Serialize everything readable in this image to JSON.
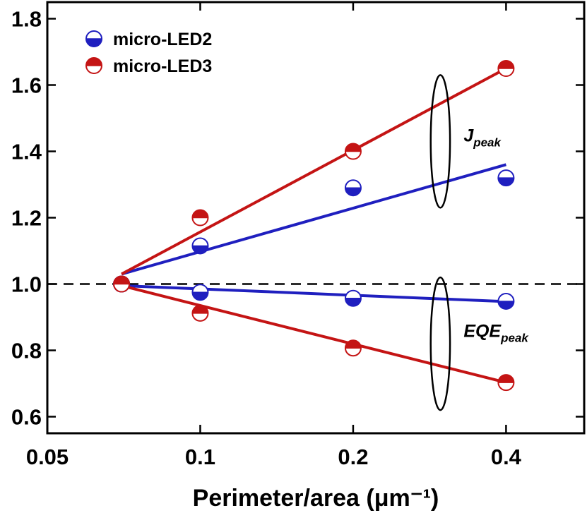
{
  "chart_data": {
    "type": "scatter",
    "xlabel": "Perimeter/area (μm⁻¹)",
    "x_scale": "log",
    "xlim": [
      0.05,
      0.57
    ],
    "ylim": [
      0.55,
      1.85
    ],
    "x_ticks": [
      0.05,
      0.1,
      0.2,
      0.4
    ],
    "x_tick_labels": [
      "0.05",
      "0.1",
      "0.2",
      "0.4"
    ],
    "y_ticks": [
      0.6,
      0.8,
      1.0,
      1.2,
      1.4,
      1.6,
      1.8
    ],
    "y_tick_labels": [
      "0.6",
      "0.8",
      "1.0",
      "1.2",
      "1.4",
      "1.6",
      "1.8"
    ],
    "reference_line": {
      "y": 1.0,
      "style": "dashed"
    },
    "legend_position": "top-left",
    "series": [
      {
        "name": "micro-LED2",
        "color": "#1f1fbf",
        "marker": "half-filled-bottom",
        "group": "Jpeak",
        "x": [
          0.07,
          0.1,
          0.2,
          0.4
        ],
        "y": [
          1.0,
          1.115,
          1.29,
          1.32
        ],
        "fit": {
          "x": [
            0.07,
            0.4
          ],
          "y": [
            1.03,
            1.36
          ]
        }
      },
      {
        "name": "micro-LED3",
        "color": "#c41414",
        "marker": "half-filled-top",
        "group": "Jpeak",
        "x": [
          0.07,
          0.1,
          0.2,
          0.4
        ],
        "y": [
          1.0,
          1.2,
          1.4,
          1.65
        ],
        "fit": {
          "x": [
            0.07,
            0.4
          ],
          "y": [
            1.03,
            1.65
          ]
        }
      },
      {
        "name": "micro-LED2",
        "color": "#1f1fbf",
        "marker": "half-filled-bottom",
        "group": "EQEpeak",
        "x": [
          0.07,
          0.1,
          0.2,
          0.4
        ],
        "y": [
          1.0,
          0.975,
          0.957,
          0.948
        ],
        "fit": {
          "x": [
            0.07,
            0.4
          ],
          "y": [
            0.995,
            0.947
          ]
        }
      },
      {
        "name": "micro-LED3",
        "color": "#c41414",
        "marker": "half-filled-top",
        "group": "EQEpeak",
        "x": [
          0.07,
          0.1,
          0.2,
          0.4
        ],
        "y": [
          1.0,
          0.912,
          0.807,
          0.703
        ],
        "fit": {
          "x": [
            0.07,
            0.4
          ],
          "y": [
            0.995,
            0.703
          ]
        }
      }
    ],
    "legend": [
      {
        "label": "micro-LED2",
        "color": "#1f1fbf",
        "marker": "half-filled-bottom"
      },
      {
        "label": "micro-LED3",
        "color": "#c41414",
        "marker": "half-filled-top"
      }
    ],
    "annotations": [
      {
        "main": "J",
        "sub": "peak",
        "x": 0.33,
        "y": 1.43
      },
      {
        "main": "EQE",
        "sub": "peak",
        "x": 0.33,
        "y": 0.84
      }
    ],
    "ellipses": [
      {
        "cx": 0.297,
        "cy": 1.43,
        "rx_frac": 0.018,
        "ry_data": 0.2
      },
      {
        "cx": 0.297,
        "cy": 0.82,
        "rx_frac": 0.018,
        "ry_data": 0.2
      }
    ]
  }
}
